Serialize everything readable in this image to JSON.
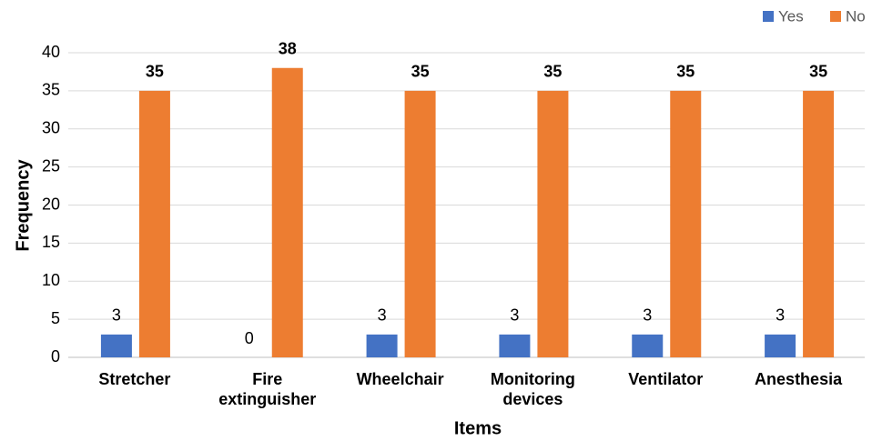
{
  "chart_data": {
    "type": "bar",
    "x_label": "Items",
    "y_label": "Frequency",
    "categories": [
      "Stretcher",
      "Fire extinguisher",
      "Wheelchair",
      "Monitoring devices",
      "Ventilator",
      "Anesthesia"
    ],
    "series": [
      {
        "name": "Yes",
        "color": "#4472c4",
        "values": [
          3,
          0,
          3,
          3,
          3,
          3
        ]
      },
      {
        "name": "No",
        "color": "#ed7d31",
        "values": [
          35,
          38,
          35,
          35,
          35,
          35
        ]
      }
    ],
    "ylim": [
      0,
      40
    ],
    "yticks": [
      0,
      5,
      10,
      15,
      20,
      25,
      30,
      35,
      40
    ],
    "grid": true,
    "legend": "top-right"
  }
}
